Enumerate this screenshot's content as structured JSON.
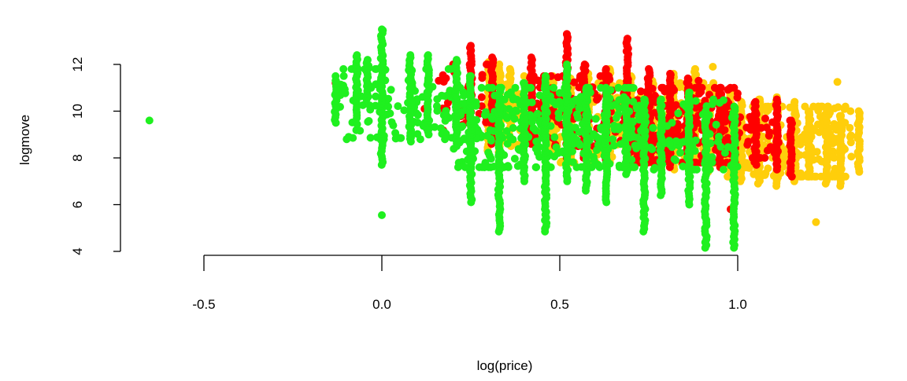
{
  "chart_data": {
    "type": "scatter",
    "title": "",
    "xlabel": "log(price)",
    "ylabel": "logmove",
    "xlim": [
      -0.75,
      1.4
    ],
    "ylim": [
      4,
      13.6
    ],
    "x_ticks": [
      -0.5,
      0.0,
      0.5,
      1.0
    ],
    "x_tick_labels": [
      "-0.5",
      "0.0",
      "0.5",
      "1.0"
    ],
    "y_ticks": [
      4,
      6,
      8,
      10,
      12
    ],
    "y_tick_labels": [
      "4",
      "6",
      "8",
      "10",
      "12"
    ],
    "grid": false,
    "legend": "none",
    "series": [
      {
        "name": "gold",
        "color": "#FFCE0B",
        "columns": [
          [
            0.3,
            8.2,
            12.1
          ],
          [
            0.33,
            8.0,
            12.0
          ],
          [
            0.36,
            8.5,
            11.8
          ],
          [
            0.48,
            8.2,
            11.5
          ],
          [
            0.53,
            8.0,
            11.4
          ],
          [
            0.58,
            7.8,
            11.6
          ],
          [
            0.64,
            7.8,
            11.8
          ],
          [
            0.7,
            7.6,
            11.5
          ],
          [
            0.76,
            7.8,
            11.3
          ],
          [
            0.82,
            7.5,
            11.5
          ],
          [
            0.88,
            7.6,
            11.8
          ],
          [
            0.92,
            7.4,
            11.0
          ],
          [
            0.98,
            7.2,
            10.8
          ],
          [
            1.01,
            7.0,
            10.4
          ],
          [
            1.06,
            6.9,
            10.5
          ],
          [
            1.11,
            6.8,
            10.6
          ],
          [
            1.16,
            7.0,
            10.4
          ],
          [
            1.2,
            7.2,
            10.0
          ],
          [
            1.25,
            6.9,
            10.1
          ],
          [
            1.29,
            6.8,
            9.8
          ],
          [
            1.34,
            7.4,
            10.0
          ]
        ],
        "clouds": [
          [
            0.3,
            0.4,
            8.5,
            11.5,
            40
          ],
          [
            0.45,
            0.95,
            7.8,
            11.2,
            220
          ],
          [
            0.95,
            1.32,
            7.2,
            10.2,
            260
          ]
        ],
        "points": [
          [
            1.22,
            5.25
          ],
          [
            1.28,
            11.25
          ],
          [
            0.93,
            11.9
          ],
          [
            0.82,
            11.6
          ]
        ]
      },
      {
        "name": "red",
        "color": "#FF0000",
        "columns": [
          [
            0.25,
            9.0,
            12.8
          ],
          [
            0.31,
            8.6,
            12.3
          ],
          [
            0.42,
            8.6,
            12.3
          ],
          [
            0.52,
            8.0,
            13.3
          ],
          [
            0.57,
            8.0,
            12.0
          ],
          [
            0.63,
            7.8,
            11.8
          ],
          [
            0.69,
            8.0,
            13.1
          ],
          [
            0.75,
            7.8,
            11.8
          ],
          [
            0.81,
            7.6,
            11.6
          ],
          [
            0.86,
            7.5,
            11.4
          ],
          [
            0.95,
            7.6,
            11.0
          ],
          [
            1.05,
            7.7,
            10.4
          ],
          [
            1.11,
            7.5,
            10.5
          ],
          [
            1.15,
            7.2,
            9.6
          ]
        ],
        "clouds": [
          [
            0.17,
            0.3,
            9.0,
            12.0,
            40
          ],
          [
            0.4,
            0.7,
            8.5,
            11.5,
            120
          ],
          [
            0.7,
            1.0,
            7.8,
            11.0,
            260
          ],
          [
            1.0,
            1.12,
            8.0,
            10.0,
            30
          ]
        ],
        "points": [
          [
            -0.13,
            11.2
          ],
          [
            0.12,
            10.1
          ],
          [
            0.16,
            11.3
          ],
          [
            0.98,
            5.8
          ],
          [
            0.89,
            11.3
          ],
          [
            0.69,
            13.1
          ]
        ]
      },
      {
        "name": "green",
        "color": "#1FF01F",
        "columns": [
          [
            -0.13,
            9.5,
            11.3
          ],
          [
            -0.07,
            9.7,
            12.4
          ],
          [
            -0.04,
            10.5,
            12.2
          ],
          [
            0.0,
            7.7,
            13.5
          ],
          [
            0.08,
            8.7,
            12.4
          ],
          [
            0.13,
            9.0,
            12.4
          ],
          [
            0.21,
            8.5,
            12.2
          ],
          [
            0.25,
            6.1,
            11.5
          ],
          [
            0.33,
            4.85,
            11.0
          ],
          [
            0.4,
            7.0,
            11.2
          ],
          [
            0.46,
            4.85,
            11.5
          ],
          [
            0.52,
            7.0,
            12.0
          ],
          [
            0.575,
            6.6,
            11.0
          ],
          [
            0.63,
            6.1,
            11.0
          ],
          [
            0.686,
            7.3,
            10.5
          ],
          [
            0.737,
            4.85,
            10.5
          ],
          [
            0.785,
            6.4,
            10.5
          ],
          [
            0.863,
            6.0,
            10.8
          ],
          [
            0.91,
            4.15,
            10.0
          ],
          [
            0.99,
            4.15,
            10.2
          ]
        ],
        "clouds": [
          [
            -0.12,
            0.2,
            8.8,
            11.8,
            120
          ],
          [
            0.2,
            0.75,
            7.6,
            11.0,
            320
          ],
          [
            0.75,
            1.0,
            7.5,
            10.5,
            60
          ]
        ],
        "points": [
          [
            -0.653,
            9.6
          ],
          [
            0.0,
            5.55
          ],
          [
            -0.13,
            11.5
          ],
          [
            -0.03,
            11.0
          ]
        ]
      }
    ]
  }
}
